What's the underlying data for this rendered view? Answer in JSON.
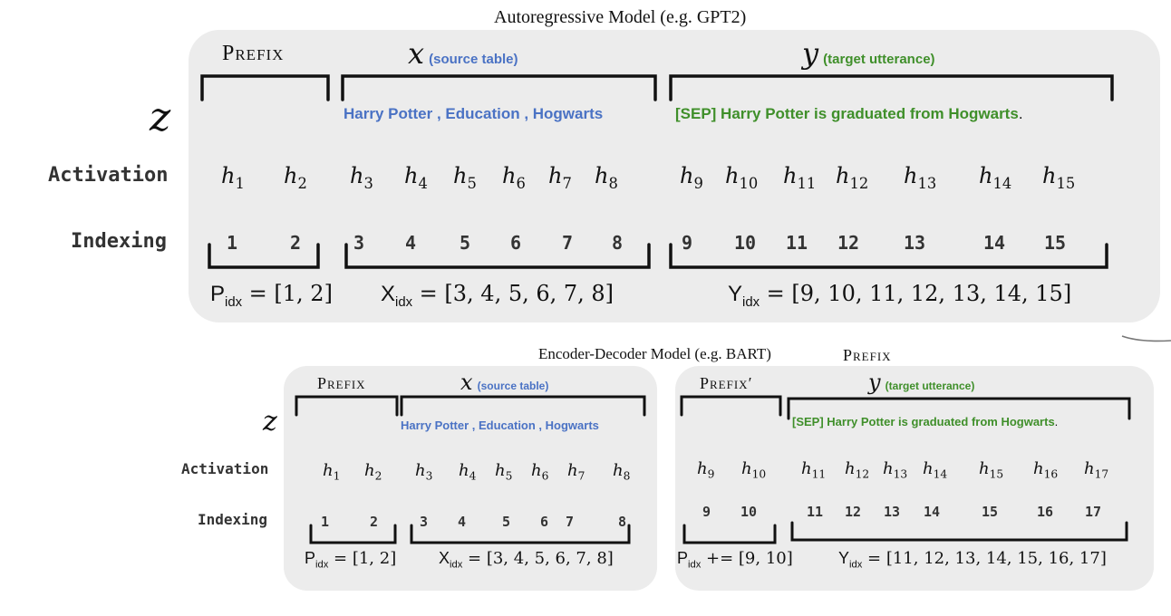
{
  "top": {
    "title": "Autoregressive Model  (e.g. GPT2)",
    "prefix_label": "Prefix",
    "x_var": "x",
    "x_sub": "(source table)",
    "y_var": "y",
    "y_sub": "(target utterance)",
    "z_label": "z",
    "source_tokens": "Harry  Potter , Education ,  Hogwarts",
    "target_tokens": "[SEP]  Harry Potter  is graduated  from  Hogwarts",
    "target_period": ".",
    "activation_label": "Activation",
    "indexing_label": "Indexing",
    "activations": [
      {
        "base": "h",
        "sub": "1"
      },
      {
        "base": "h",
        "sub": "2"
      },
      {
        "base": "h",
        "sub": "3"
      },
      {
        "base": "h",
        "sub": "4"
      },
      {
        "base": "h",
        "sub": "5"
      },
      {
        "base": "h",
        "sub": "6"
      },
      {
        "base": "h",
        "sub": "7"
      },
      {
        "base": "h",
        "sub": "8"
      },
      {
        "base": "h",
        "sub": "9"
      },
      {
        "base": "h",
        "sub": "10"
      },
      {
        "base": "h",
        "sub": "11"
      },
      {
        "base": "h",
        "sub": "12"
      },
      {
        "base": "h",
        "sub": "13"
      },
      {
        "base": "h",
        "sub": "14"
      },
      {
        "base": "h",
        "sub": "15"
      }
    ],
    "indices": [
      "1",
      "2",
      "3",
      "4",
      "5",
      "6",
      "7",
      "8",
      "9",
      "10",
      "11",
      "12",
      "13",
      "14",
      "15"
    ],
    "p_idx": {
      "var": "P",
      "sub": "idx",
      "rhs": "= [1, 2]"
    },
    "x_idx": {
      "var": "X",
      "sub": "idx",
      "rhs": "= [3, 4, 5, 6, 7, 8]"
    },
    "y_idx": {
      "var": "Y",
      "sub": "idx",
      "rhs": "= [9, 10, 11, 12, 13, 14, 15]"
    }
  },
  "bottom": {
    "title": "Encoder-Decoder Model  (e.g. BART)",
    "stray_prefix": "Prefix",
    "prefix_label": "Prefix",
    "prefix2_label": "Prefix′",
    "x_var": "x",
    "x_sub": "(source table)",
    "y_var": "y",
    "y_sub": "(target utterance)",
    "z_label": "z",
    "source_tokens": "Harry  Potter , Education ,  Hogwarts",
    "target_tokens": "[SEP]  Harry Potter  is graduated  from  Hogwarts",
    "target_period": ".",
    "activation_label": "Activation",
    "indexing_label": "Indexing",
    "enc_activations": [
      {
        "base": "h",
        "sub": "1"
      },
      {
        "base": "h",
        "sub": "2"
      },
      {
        "base": "h",
        "sub": "3"
      },
      {
        "base": "h",
        "sub": "4"
      },
      {
        "base": "h",
        "sub": "5"
      },
      {
        "base": "h",
        "sub": "6"
      },
      {
        "base": "h",
        "sub": "7"
      },
      {
        "base": "h",
        "sub": "8"
      }
    ],
    "dec_activations": [
      {
        "base": "h",
        "sub": "9"
      },
      {
        "base": "h",
        "sub": "10"
      },
      {
        "base": "h",
        "sub": "11"
      },
      {
        "base": "h",
        "sub": "12"
      },
      {
        "base": "h",
        "sub": "13"
      },
      {
        "base": "h",
        "sub": "14"
      },
      {
        "base": "h",
        "sub": "15"
      },
      {
        "base": "h",
        "sub": "16"
      },
      {
        "base": "h",
        "sub": "17"
      }
    ],
    "enc_indices": [
      "1",
      "2",
      "3",
      "4",
      "5",
      "6",
      "7",
      "8"
    ],
    "dec_indices": [
      "9",
      "10",
      "11",
      "12",
      "13",
      "14",
      "15",
      "16",
      "17"
    ],
    "p_idx": {
      "var": "P",
      "sub": "idx",
      "rhs": "= [1, 2]"
    },
    "x_idx": {
      "var": "X",
      "sub": "idx",
      "rhs": "= [3, 4, 5, 6, 7, 8]"
    },
    "p2_idx": {
      "var": "P",
      "sub": "idx",
      "rhs": "+= [9, 10]"
    },
    "y_idx": {
      "var": "Y",
      "sub": "idx",
      "rhs": "= [11, 12, 13, 14, 15, 16, 17]"
    }
  },
  "colors": {
    "panel": "#ececec",
    "source_blue": "#4a72c4",
    "target_green": "#3f8f2a"
  }
}
